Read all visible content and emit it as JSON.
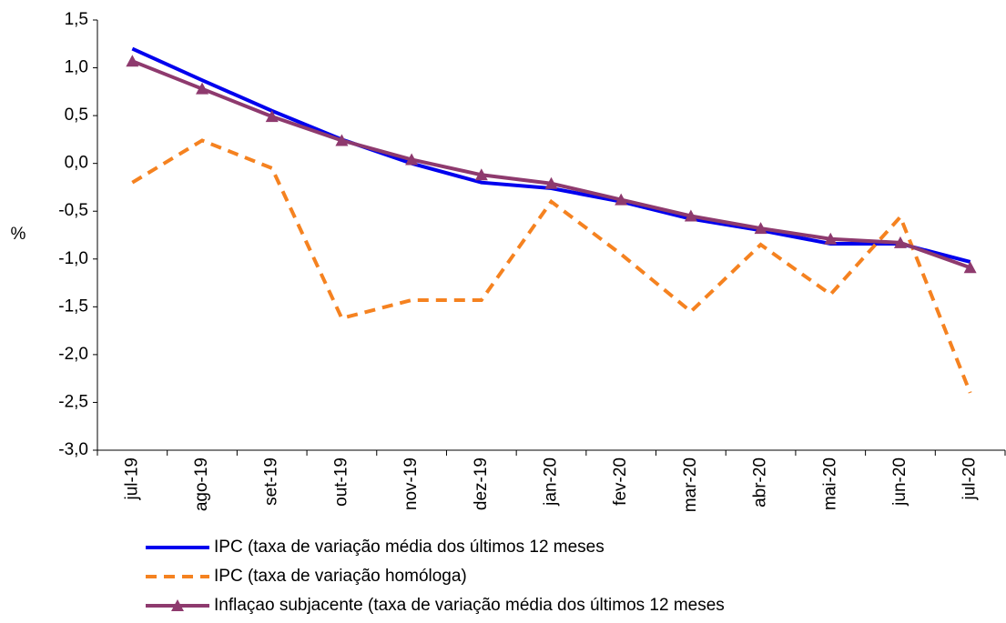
{
  "chart_data": {
    "type": "line",
    "y_label": "%",
    "categories": [
      "jul-19",
      "ago-19",
      "set-19",
      "out-19",
      "nov-19",
      "dez-19",
      "jan-20",
      "fev-20",
      "mar-20",
      "abr-20",
      "mai-20",
      "jun-20",
      "jul-20"
    ],
    "ylim": [
      -3.0,
      1.5
    ],
    "yticks": [
      {
        "value": -3.0,
        "label": "-3,0"
      },
      {
        "value": -2.5,
        "label": "-2,5"
      },
      {
        "value": -2.0,
        "label": "-2,0"
      },
      {
        "value": -1.5,
        "label": "-1,5"
      },
      {
        "value": -1.0,
        "label": "-1,0"
      },
      {
        "value": -0.5,
        "label": "-0,5"
      },
      {
        "value": 0.0,
        "label": "0,0"
      },
      {
        "value": 0.5,
        "label": "0,5"
      },
      {
        "value": 1.0,
        "label": "1,0"
      },
      {
        "value": 1.5,
        "label": "1,5"
      }
    ],
    "series": [
      {
        "name": "IPC (taxa de variação média dos últimos 12 meses",
        "color": "#0000ee",
        "dash": false,
        "marker": false,
        "values": [
          1.2,
          0.87,
          0.55,
          0.25,
          0.0,
          -0.2,
          -0.26,
          -0.4,
          -0.58,
          -0.7,
          -0.84,
          -0.84,
          -1.03
        ]
      },
      {
        "name": "IPC (taxa de variação homóloga)",
        "color": "#f58220",
        "dash": true,
        "marker": false,
        "values": [
          -0.2,
          0.24,
          -0.05,
          -1.62,
          -1.43,
          -1.43,
          -0.4,
          -0.95,
          -1.55,
          -0.85,
          -1.37,
          -0.56,
          -2.4
        ]
      },
      {
        "name": "Inflaçao subjacente (taxa de variação média dos últimos 12 meses",
        "color": "#8e3a6e",
        "dash": false,
        "marker": true,
        "values": [
          1.07,
          0.78,
          0.49,
          0.24,
          0.04,
          -0.12,
          -0.21,
          -0.38,
          -0.55,
          -0.68,
          -0.79,
          -0.83,
          -1.09
        ]
      }
    ]
  }
}
